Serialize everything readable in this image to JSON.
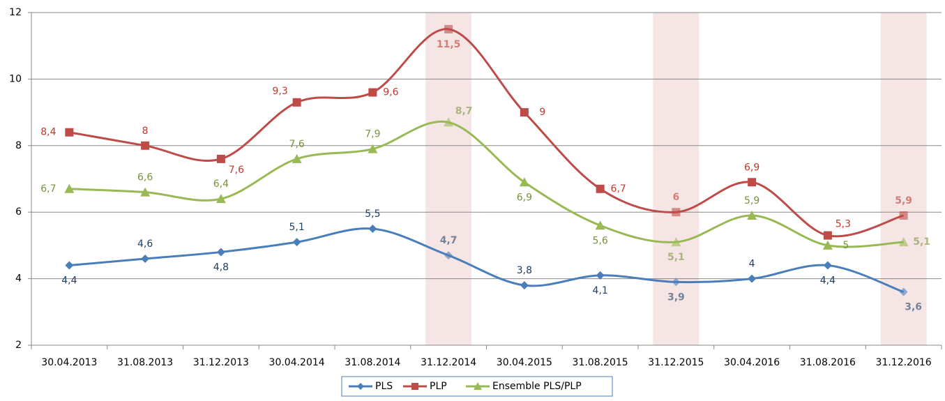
{
  "chart_data": {
    "type": "line",
    "categories": [
      "30.04.2013",
      "31.08.2013",
      "31.12.2013",
      "30.04.2014",
      "31.08.2014",
      "31.12.2014",
      "30.04.2015",
      "31.08.2015",
      "31.12.2015",
      "30.04.2016",
      "31.08.2016",
      "31.12.2016"
    ],
    "series": [
      {
        "name": "PLS",
        "color": "#4a7ebb",
        "label_color": "#1f3f66",
        "marker": "diamond",
        "values": [
          4.4,
          4.6,
          4.8,
          5.1,
          5.5,
          4.7,
          3.8,
          4.1,
          3.9,
          4,
          4.4,
          3.6
        ],
        "value_labels": [
          "4,4",
          "4,6",
          "4,8",
          "5,1",
          "5,5",
          "4,7",
          "3,8",
          "4,1",
          "3,9",
          "4",
          "4,4",
          "3,6"
        ]
      },
      {
        "name": "PLP",
        "color": "#be4b48",
        "label_color": "#c0392b",
        "marker": "square",
        "values": [
          8.4,
          8,
          7.6,
          9.3,
          9.6,
          11.5,
          9,
          6.7,
          6,
          6.9,
          5.3,
          5.9
        ],
        "value_labels": [
          "8,4",
          "8",
          "7,6",
          "9,3",
          "9,6",
          "11,5",
          "9",
          "6,7",
          "6",
          "6,9",
          "5,3",
          "5,9"
        ]
      },
      {
        "name": "Ensemble PLS/PLP",
        "color": "#98b954",
        "label_color": "#77933c",
        "marker": "triangle",
        "values": [
          6.7,
          6.6,
          6.4,
          7.6,
          7.9,
          8.7,
          6.9,
          5.6,
          5.1,
          5.9,
          5,
          5.1
        ],
        "value_labels": [
          "6,7",
          "6,6",
          "6,4",
          "7,6",
          "7,9",
          "8,7",
          "6,9",
          "5,6",
          "5,1",
          "5,9",
          "5",
          "5,1"
        ]
      }
    ],
    "ylim": [
      2,
      12
    ],
    "yticks": [
      2,
      4,
      6,
      8,
      10,
      12
    ],
    "grid": true,
    "highlight": [
      5,
      8,
      11
    ],
    "legend": "bottom"
  }
}
